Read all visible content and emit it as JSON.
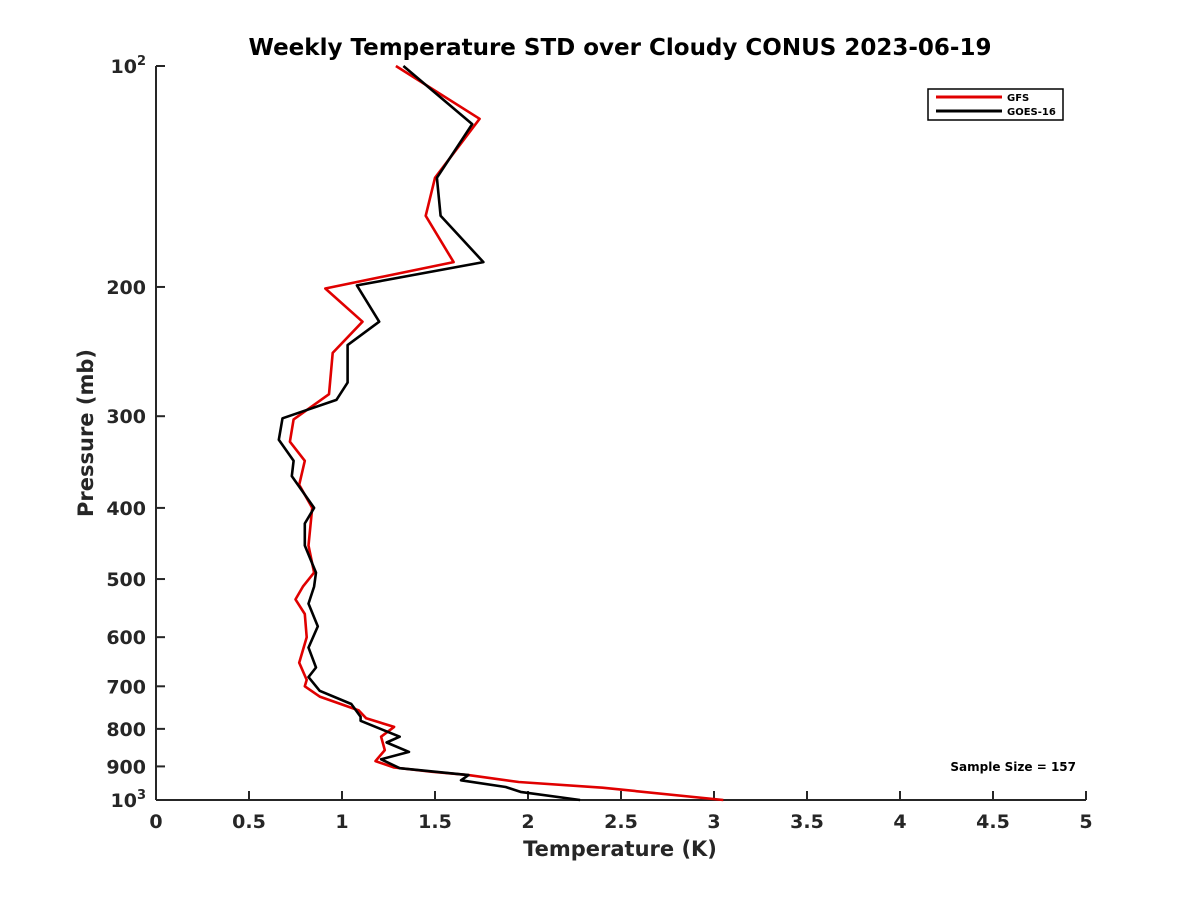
{
  "chart_data": {
    "type": "line",
    "title": "Weekly Temperature STD over Cloudy CONUS 2023-06-19",
    "xlabel": "Temperature (K)",
    "ylabel": "Pressure (mb)",
    "xlim": [
      0,
      5
    ],
    "ylim": [
      100,
      1000
    ],
    "y_scale": "log",
    "y_reversed": true,
    "grid": false,
    "legend_position": "top-right",
    "x_ticks": [
      "0",
      "0.5",
      "1",
      "1.5",
      "2",
      "2.5",
      "3",
      "3.5",
      "4",
      "4.5",
      "5"
    ],
    "y_ticks": [
      {
        "value": 100,
        "base": "10",
        "exp": "2"
      },
      {
        "value": 200,
        "label": "200"
      },
      {
        "value": 300,
        "label": "300"
      },
      {
        "value": 400,
        "label": "400"
      },
      {
        "value": 500,
        "label": "500"
      },
      {
        "value": 600,
        "label": "600"
      },
      {
        "value": 700,
        "label": "700"
      },
      {
        "value": 800,
        "label": "800"
      },
      {
        "value": 900,
        "label": "900"
      },
      {
        "value": 1000,
        "base": "10",
        "exp": "3"
      }
    ],
    "annotation": "Sample Size = 157",
    "series": [
      {
        "name": "GFS",
        "color": "#e00000",
        "points": [
          [
            1.29,
            100
          ],
          [
            1.74,
            118
          ],
          [
            1.5,
            142
          ],
          [
            1.45,
            160
          ],
          [
            1.6,
            185
          ],
          [
            0.91,
            201
          ],
          [
            1.11,
            223
          ],
          [
            0.95,
            246
          ],
          [
            0.93,
            280
          ],
          [
            0.74,
            303
          ],
          [
            0.72,
            325
          ],
          [
            0.8,
            345
          ],
          [
            0.77,
            372
          ],
          [
            0.84,
            400
          ],
          [
            0.82,
            450
          ],
          [
            0.85,
            490
          ],
          [
            0.79,
            512
          ],
          [
            0.75,
            533
          ],
          [
            0.8,
            558
          ],
          [
            0.81,
            600
          ],
          [
            0.77,
            650
          ],
          [
            0.81,
            686
          ],
          [
            0.8,
            700
          ],
          [
            0.88,
            723
          ],
          [
            1.09,
            755
          ],
          [
            1.13,
            774
          ],
          [
            1.28,
            795
          ],
          [
            1.21,
            820
          ],
          [
            1.23,
            855
          ],
          [
            1.18,
            885
          ],
          [
            1.28,
            903
          ],
          [
            1.48,
            915
          ],
          [
            1.68,
            925
          ],
          [
            1.95,
            945
          ],
          [
            2.4,
            962
          ],
          [
            3.05,
            1000
          ]
        ]
      },
      {
        "name": "GOES-16",
        "color": "#000000",
        "points": [
          [
            1.33,
            100
          ],
          [
            1.7,
            120
          ],
          [
            1.51,
            142
          ],
          [
            1.53,
            160
          ],
          [
            1.76,
            185
          ],
          [
            1.08,
            199
          ],
          [
            1.2,
            223
          ],
          [
            1.03,
            240
          ],
          [
            1.03,
            270
          ],
          [
            0.97,
            285
          ],
          [
            0.68,
            302
          ],
          [
            0.66,
            323
          ],
          [
            0.74,
            345
          ],
          [
            0.73,
            362
          ],
          [
            0.85,
            400
          ],
          [
            0.8,
            420
          ],
          [
            0.8,
            450
          ],
          [
            0.86,
            490
          ],
          [
            0.85,
            512
          ],
          [
            0.82,
            540
          ],
          [
            0.87,
            580
          ],
          [
            0.82,
            620
          ],
          [
            0.86,
            660
          ],
          [
            0.82,
            680
          ],
          [
            0.88,
            710
          ],
          [
            1.05,
            740
          ],
          [
            1.1,
            770
          ],
          [
            1.1,
            780
          ],
          [
            1.31,
            820
          ],
          [
            1.24,
            835
          ],
          [
            1.36,
            860
          ],
          [
            1.21,
            880
          ],
          [
            1.31,
            905
          ],
          [
            1.68,
            925
          ],
          [
            1.64,
            940
          ],
          [
            1.88,
            960
          ],
          [
            1.96,
            975
          ],
          [
            2.28,
            1000
          ]
        ]
      }
    ]
  }
}
